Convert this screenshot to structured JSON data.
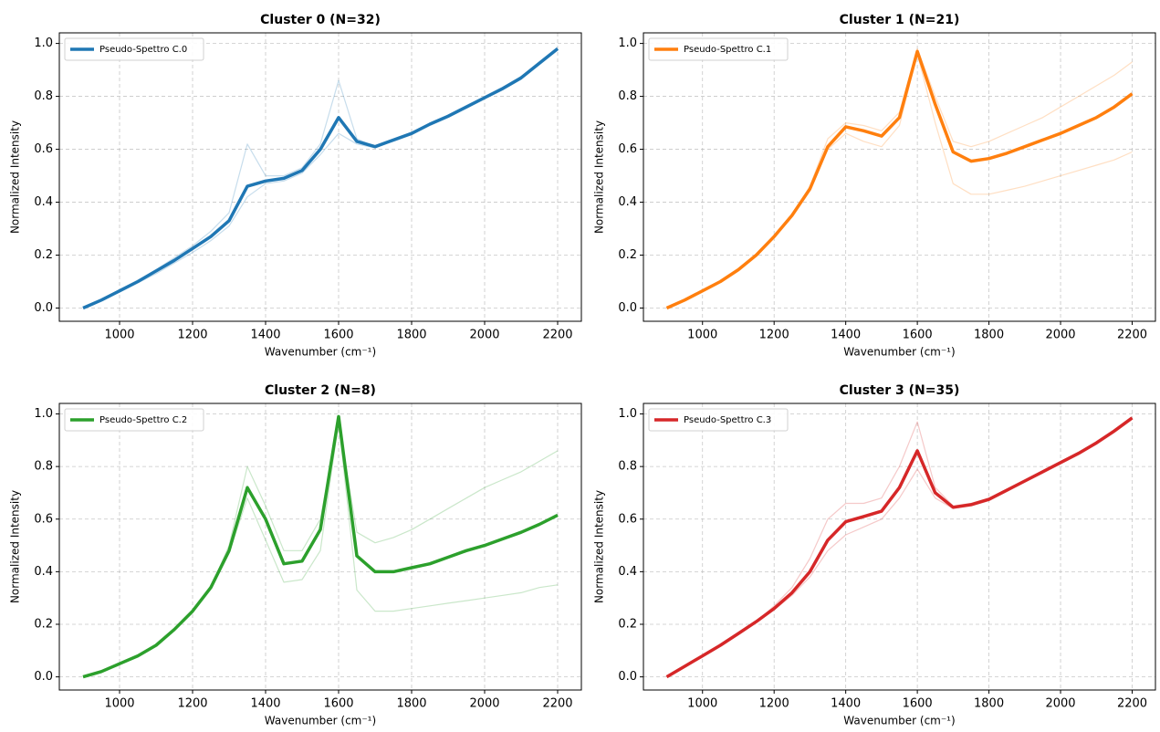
{
  "chart_data": [
    {
      "type": "line",
      "title": "Cluster 0 (N=32)",
      "x_label": "Wavenumber (cm⁻¹)",
      "y_label": "Normalized Intensity",
      "x": [
        900,
        950,
        1000,
        1050,
        1100,
        1150,
        1200,
        1250,
        1300,
        1350,
        1400,
        1450,
        1500,
        1550,
        1600,
        1650,
        1700,
        1750,
        1800,
        1850,
        1900,
        1950,
        2000,
        2050,
        2100,
        2150,
        2200
      ],
      "xlim": [
        835,
        2265
      ],
      "xticks": [
        1000,
        1200,
        1400,
        1600,
        1800,
        2000,
        2200
      ],
      "ylim": [
        -0.05,
        1.04
      ],
      "yticks": [
        {
          "value": 0,
          "label": "0.0"
        },
        0.2,
        0.4,
        0.6,
        0.8,
        {
          "value": 1,
          "label": "1.0"
        }
      ],
      "grid": true,
      "legend": "upper left",
      "series": [
        {
          "color": "#1f77b4",
          "opacity": 0.25,
          "values": [
            0,
            0.03,
            0.07,
            0.105,
            0.145,
            0.19,
            0.235,
            0.29,
            0.36,
            0.62,
            0.5,
            0.5,
            0.53,
            0.62,
            0.86,
            0.64,
            0.61,
            0.63,
            0.655,
            0.69,
            0.72,
            0.755,
            0.79,
            0.825,
            0.865,
            0.92,
            0.975
          ]
        },
        {
          "color": "#1f77b4",
          "opacity": 0.25,
          "values": [
            0,
            0.028,
            0.06,
            0.095,
            0.13,
            0.17,
            0.21,
            0.255,
            0.31,
            0.42,
            0.47,
            0.48,
            0.51,
            0.58,
            0.66,
            0.62,
            0.605,
            0.635,
            0.66,
            0.695,
            0.73,
            0.765,
            0.8,
            0.835,
            0.875,
            0.93,
            0.985
          ]
        },
        {
          "name": "Pseudo-Spettro C.0",
          "color": "#1f77b4",
          "opacity": 1,
          "values": [
            0,
            0.03,
            0.065,
            0.1,
            0.14,
            0.18,
            0.225,
            0.27,
            0.33,
            0.46,
            0.48,
            0.49,
            0.52,
            0.6,
            0.72,
            0.63,
            0.61,
            0.635,
            0.66,
            0.695,
            0.725,
            0.76,
            0.795,
            0.83,
            0.87,
            0.925,
            0.98
          ]
        }
      ]
    },
    {
      "type": "line",
      "title": "Cluster 1 (N=21)",
      "x_label": "Wavenumber (cm⁻¹)",
      "y_label": "Normalized Intensity",
      "x": [
        900,
        950,
        1000,
        1050,
        1100,
        1150,
        1200,
        1250,
        1300,
        1350,
        1400,
        1450,
        1500,
        1550,
        1600,
        1650,
        1700,
        1750,
        1800,
        1850,
        1900,
        1950,
        2000,
        2050,
        2100,
        2150,
        2200
      ],
      "xlim": [
        835,
        2265
      ],
      "xticks": [
        1000,
        1200,
        1400,
        1600,
        1800,
        2000,
        2200
      ],
      "ylim": [
        -0.05,
        1.04
      ],
      "yticks": [
        {
          "value": 0,
          "label": "0.0"
        },
        0.2,
        0.4,
        0.6,
        0.8,
        {
          "value": 1,
          "label": "1.0"
        }
      ],
      "grid": true,
      "legend": "upper left",
      "series": [
        {
          "color": "#ff7f0e",
          "opacity": 0.25,
          "values": [
            0,
            0.03,
            0.065,
            0.1,
            0.145,
            0.2,
            0.27,
            0.35,
            0.46,
            0.64,
            0.7,
            0.69,
            0.67,
            0.74,
            0.98,
            0.8,
            0.63,
            0.61,
            0.63,
            0.66,
            0.69,
            0.72,
            0.76,
            0.8,
            0.84,
            0.88,
            0.93
          ]
        },
        {
          "color": "#ff7f0e",
          "opacity": 0.25,
          "values": [
            0,
            0.03,
            0.065,
            0.1,
            0.145,
            0.2,
            0.27,
            0.35,
            0.45,
            0.6,
            0.66,
            0.63,
            0.61,
            0.69,
            0.96,
            0.7,
            0.47,
            0.43,
            0.43,
            0.445,
            0.46,
            0.48,
            0.5,
            0.52,
            0.54,
            0.56,
            0.59
          ]
        },
        {
          "name": "Pseudo-Spettro C.1",
          "color": "#ff7f0e",
          "opacity": 1,
          "values": [
            0,
            0.03,
            0.065,
            0.1,
            0.145,
            0.2,
            0.27,
            0.35,
            0.45,
            0.61,
            0.685,
            0.67,
            0.65,
            0.72,
            0.97,
            0.77,
            0.59,
            0.555,
            0.565,
            0.585,
            0.61,
            0.635,
            0.66,
            0.69,
            0.72,
            0.76,
            0.81
          ]
        }
      ]
    },
    {
      "type": "line",
      "title": "Cluster 2 (N=8)",
      "x_label": "Wavenumber (cm⁻¹)",
      "y_label": "Normalized Intensity",
      "x": [
        900,
        950,
        1000,
        1050,
        1100,
        1150,
        1200,
        1250,
        1300,
        1350,
        1400,
        1450,
        1500,
        1550,
        1600,
        1650,
        1700,
        1750,
        1800,
        1850,
        1900,
        1950,
        2000,
        2050,
        2100,
        2150,
        2200
      ],
      "xlim": [
        835,
        2265
      ],
      "xticks": [
        1000,
        1200,
        1400,
        1600,
        1800,
        2000,
        2200
      ],
      "ylim": [
        -0.05,
        1.04
      ],
      "yticks": [
        {
          "value": 0,
          "label": "0.0"
        },
        0.2,
        0.4,
        0.6,
        0.8,
        {
          "value": 1,
          "label": "1.0"
        }
      ],
      "grid": true,
      "legend": "upper left",
      "series": [
        {
          "color": "#2ca02c",
          "opacity": 0.25,
          "values": [
            0,
            0.02,
            0.05,
            0.08,
            0.12,
            0.18,
            0.25,
            0.34,
            0.5,
            0.8,
            0.65,
            0.48,
            0.48,
            0.6,
            0.97,
            0.55,
            0.51,
            0.53,
            0.56,
            0.6,
            0.64,
            0.68,
            0.72,
            0.75,
            0.78,
            0.82,
            0.86
          ]
        },
        {
          "color": "#2ca02c",
          "opacity": 0.25,
          "values": [
            0,
            0.02,
            0.05,
            0.08,
            0.12,
            0.18,
            0.25,
            0.34,
            0.47,
            0.68,
            0.52,
            0.36,
            0.37,
            0.48,
            0.97,
            0.33,
            0.25,
            0.25,
            0.26,
            0.27,
            0.28,
            0.29,
            0.3,
            0.31,
            0.32,
            0.34,
            0.35
          ]
        },
        {
          "name": "Pseudo-Spettro C.2",
          "color": "#2ca02c",
          "opacity": 1,
          "values": [
            0,
            0.02,
            0.05,
            0.08,
            0.12,
            0.18,
            0.25,
            0.34,
            0.48,
            0.72,
            0.6,
            0.43,
            0.44,
            0.56,
            0.99,
            0.46,
            0.4,
            0.4,
            0.415,
            0.43,
            0.455,
            0.48,
            0.5,
            0.525,
            0.55,
            0.58,
            0.615
          ]
        }
      ]
    },
    {
      "type": "line",
      "title": "Cluster 3 (N=35)",
      "x_label": "Wavenumber (cm⁻¹)",
      "y_label": "Normalized Intensity",
      "x": [
        900,
        950,
        1000,
        1050,
        1100,
        1150,
        1200,
        1250,
        1300,
        1350,
        1400,
        1450,
        1500,
        1550,
        1600,
        1650,
        1700,
        1750,
        1800,
        1850,
        1900,
        1950,
        2000,
        2050,
        2100,
        2150,
        2200
      ],
      "xlim": [
        835,
        2265
      ],
      "xticks": [
        1000,
        1200,
        1400,
        1600,
        1800,
        2000,
        2200
      ],
      "ylim": [
        -0.05,
        1.04
      ],
      "yticks": [
        {
          "value": 0,
          "label": "0.0"
        },
        0.2,
        0.4,
        0.6,
        0.8,
        {
          "value": 1,
          "label": "1.0"
        }
      ],
      "grid": true,
      "legend": "upper left",
      "series": [
        {
          "color": "#d62728",
          "opacity": 0.25,
          "values": [
            0,
            0.04,
            0.08,
            0.12,
            0.165,
            0.21,
            0.27,
            0.34,
            0.45,
            0.6,
            0.66,
            0.66,
            0.68,
            0.8,
            0.97,
            0.72,
            0.65,
            0.66,
            0.68,
            0.71,
            0.745,
            0.78,
            0.815,
            0.85,
            0.885,
            0.93,
            0.98
          ]
        },
        {
          "color": "#d62728",
          "opacity": 0.25,
          "values": [
            0,
            0.04,
            0.08,
            0.12,
            0.165,
            0.21,
            0.255,
            0.31,
            0.38,
            0.48,
            0.54,
            0.57,
            0.6,
            0.68,
            0.79,
            0.68,
            0.64,
            0.65,
            0.67,
            0.705,
            0.74,
            0.775,
            0.81,
            0.845,
            0.885,
            0.93,
            0.98
          ]
        },
        {
          "name": "Pseudo-Spettro C.3",
          "color": "#d62728",
          "opacity": 1,
          "values": [
            0,
            0.04,
            0.08,
            0.12,
            0.165,
            0.21,
            0.26,
            0.32,
            0.4,
            0.52,
            0.59,
            0.61,
            0.63,
            0.72,
            0.86,
            0.7,
            0.645,
            0.655,
            0.675,
            0.71,
            0.745,
            0.78,
            0.815,
            0.85,
            0.89,
            0.935,
            0.985
          ]
        }
      ]
    }
  ]
}
